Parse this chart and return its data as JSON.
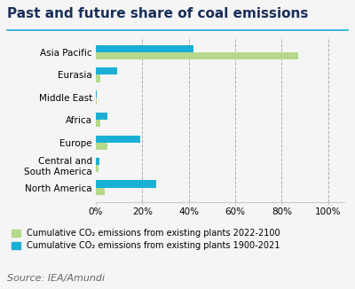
{
  "title": "Past and future share of coal emissions",
  "categories": [
    "Asia Pacific",
    "Eurasia",
    "Middle East",
    "Africa",
    "Europe",
    "Central and\nSouth America",
    "North America"
  ],
  "green_values": [
    87,
    2,
    0.3,
    2,
    5,
    1,
    4
  ],
  "blue_values": [
    42,
    9,
    0.3,
    5,
    19,
    1.5,
    26
  ],
  "green_color": "#b5d98a",
  "blue_color": "#1ab0d5",
  "grid_color": "#b0b0b0",
  "background_color": "#f5f5f5",
  "title_color": "#1a2e5a",
  "title_line_color": "#1ab0d5",
  "xlabel_ticks": [
    0,
    20,
    40,
    60,
    80,
    100
  ],
  "xlabel_labels": [
    "0%",
    "20%",
    "40%",
    "60%",
    "80%",
    "100%"
  ],
  "xlim": [
    0,
    107
  ],
  "legend_green": "Cumulative CO₂ emissions from existing plants 2022-2100",
  "legend_blue": "Cumulative CO₂ emissions from existing plants 1900-2021",
  "source_text": "Source: IEA/Amundi",
  "title_fontsize": 11,
  "label_fontsize": 7.5,
  "tick_fontsize": 7.5,
  "legend_fontsize": 7,
  "source_fontsize": 8
}
